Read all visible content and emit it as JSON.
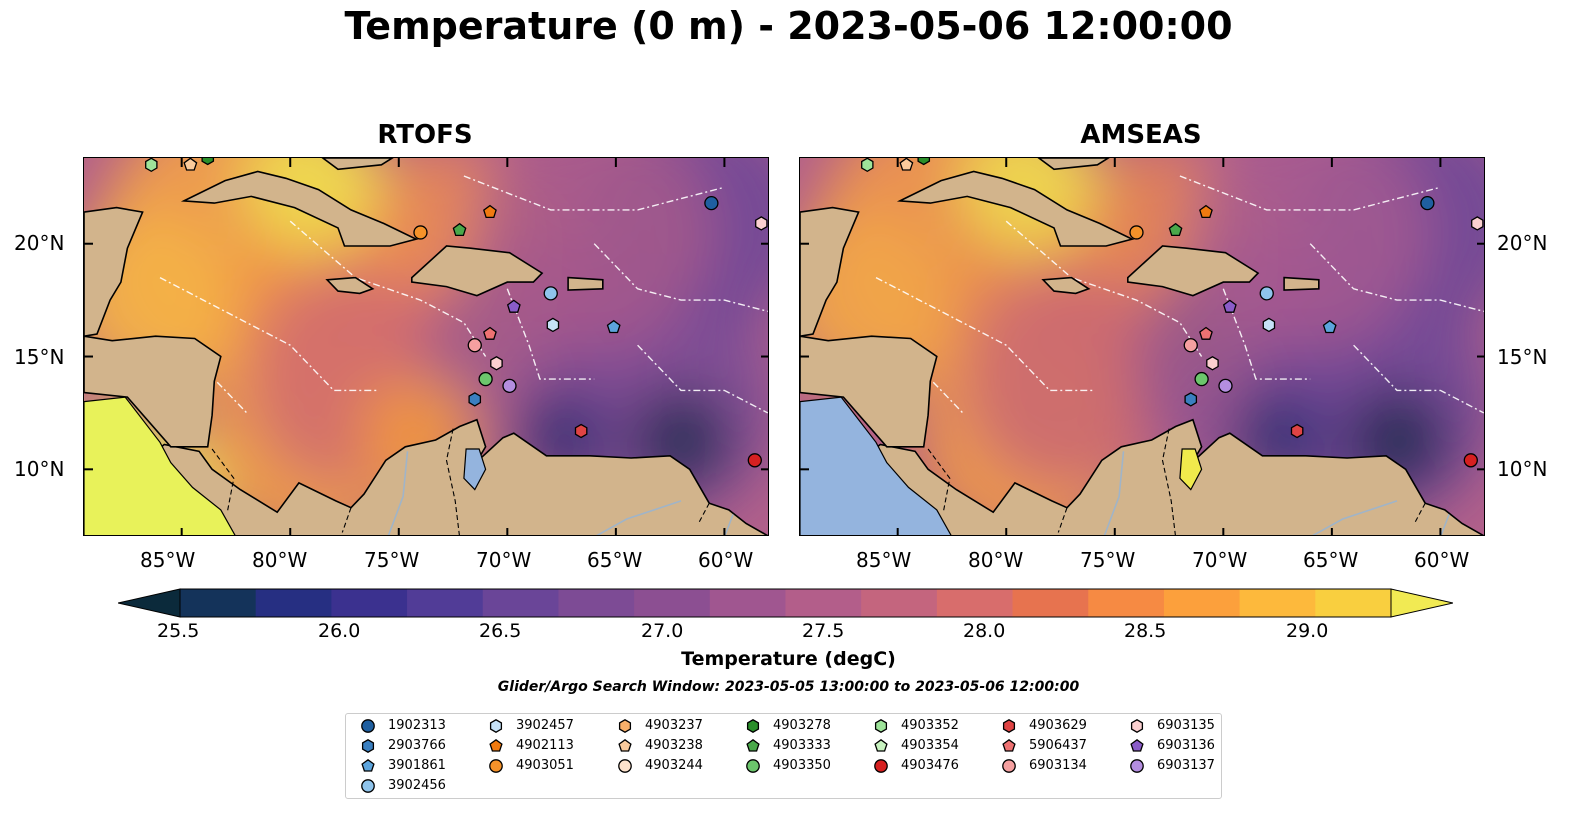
{
  "figure": {
    "title": "Temperature (0 m) - 2023-05-06 12:00:00",
    "search_window": "Glider/Argo Search Window: 2023-05-05 13:00:00 to 2023-05-06 12:00:00"
  },
  "panels": [
    {
      "title": "RTOFS"
    },
    {
      "title": "AMSEAS"
    }
  ],
  "map": {
    "lon_ticks": [
      "85°W",
      "80°W",
      "75°W",
      "70°W",
      "65°W",
      "60°W"
    ],
    "lat_ticks": [
      "20°N",
      "15°N",
      "10°N"
    ],
    "colors": {
      "land": "#d2b48c",
      "water_low": "#94b4de",
      "warm": "#f2a04a",
      "hot": "#e8f25c",
      "mid": "#c96a78",
      "cool": "#6a4c9c",
      "cold": "#0c1e3a"
    }
  },
  "colorbar": {
    "label": "Temperature (degC)",
    "ticks": [
      "25.5",
      "26.0",
      "26.5",
      "27.0",
      "27.5",
      "28.0",
      "28.5",
      "29.0"
    ],
    "colors": [
      "#0b2a3b",
      "#14335a",
      "#262f82",
      "#3b318f",
      "#513c97",
      "#6a4598",
      "#7d4b95",
      "#8c4f92",
      "#a05690",
      "#b35e8a",
      "#c4657e",
      "#d86d6c",
      "#e7734f",
      "#f68a43",
      "#fca03c",
      "#fdb93c",
      "#f9cf3f",
      "#f1ea53"
    ]
  },
  "legend": [
    {
      "id": "1902313",
      "marker": "circle",
      "color": "#1f5fa0"
    },
    {
      "id": "2903766",
      "marker": "hexagon",
      "color": "#3a7fc0"
    },
    {
      "id": "3901861",
      "marker": "pentagon",
      "color": "#5ca4dc"
    },
    {
      "id": "3902456",
      "marker": "circle",
      "color": "#8fc4ec"
    },
    {
      "id": "3902457",
      "marker": "hexagon",
      "color": "#c6e2f8"
    },
    {
      "id": "4902113",
      "marker": "pentagon",
      "color": "#f07a10"
    },
    {
      "id": "4903051",
      "marker": "circle",
      "color": "#f5922a"
    },
    {
      "id": "4903237",
      "marker": "hexagon",
      "color": "#f8b06a"
    },
    {
      "id": "4903238",
      "marker": "pentagon",
      "color": "#fbcb9c"
    },
    {
      "id": "4903244",
      "marker": "circle",
      "color": "#fde2cc"
    },
    {
      "id": "4903278",
      "marker": "hexagon",
      "color": "#2a8f2a"
    },
    {
      "id": "4903333",
      "marker": "pentagon",
      "color": "#4aa84a"
    },
    {
      "id": "4903350",
      "marker": "circle",
      "color": "#6cc66c"
    },
    {
      "id": "4903352",
      "marker": "hexagon",
      "color": "#9ee49a"
    },
    {
      "id": "4903354",
      "marker": "pentagon",
      "color": "#c8f3c0"
    },
    {
      "id": "4903476",
      "marker": "circle",
      "color": "#d62020"
    },
    {
      "id": "4903629",
      "marker": "hexagon",
      "color": "#e04444"
    },
    {
      "id": "5906437",
      "marker": "pentagon",
      "color": "#ee7272"
    },
    {
      "id": "6903134",
      "marker": "circle",
      "color": "#f5a0a0"
    },
    {
      "id": "6903135",
      "marker": "hexagon",
      "color": "#fbd0d0"
    },
    {
      "id": "6903136",
      "marker": "pentagon",
      "color": "#8a5cc8"
    },
    {
      "id": "6903137",
      "marker": "circle",
      "color": "#b48ee0"
    }
  ],
  "map_markers": [
    {
      "id": "1902313",
      "lon": -60.6,
      "lat": 21.8
    },
    {
      "id": "6903135",
      "lon": -58.3,
      "lat": 20.9
    },
    {
      "id": "4903051",
      "lon": -74.0,
      "lat": 20.5
    },
    {
      "id": "4903333",
      "lon": -72.2,
      "lat": 20.6
    },
    {
      "id": "4902113",
      "lon": -70.8,
      "lat": 21.4
    },
    {
      "id": "3902456",
      "lon": -68.0,
      "lat": 17.8
    },
    {
      "id": "6903136",
      "lon": -69.7,
      "lat": 17.2
    },
    {
      "id": "3902457",
      "lon": -67.9,
      "lat": 16.4
    },
    {
      "id": "3901861",
      "lon": -65.1,
      "lat": 16.3
    },
    {
      "id": "5906437",
      "lon": -70.8,
      "lat": 16.0
    },
    {
      "id": "6903134",
      "lon": -71.5,
      "lat": 15.5
    },
    {
      "id": "6903135",
      "lon": -70.5,
      "lat": 14.7
    },
    {
      "id": "4903350",
      "lon": -71.0,
      "lat": 14.0
    },
    {
      "id": "6903137",
      "lon": -69.9,
      "lat": 13.7
    },
    {
      "id": "2903766",
      "lon": -71.5,
      "lat": 13.1
    },
    {
      "id": "4903629",
      "lon": -66.6,
      "lat": 11.7
    },
    {
      "id": "4903476",
      "lon": -58.6,
      "lat": 10.4
    },
    {
      "id": "4903352",
      "lon": -86.4,
      "lat": 23.5
    },
    {
      "id": "4903238",
      "lon": -84.6,
      "lat": 23.5
    },
    {
      "id": "4903278",
      "lon": -83.8,
      "lat": 23.8
    }
  ]
}
